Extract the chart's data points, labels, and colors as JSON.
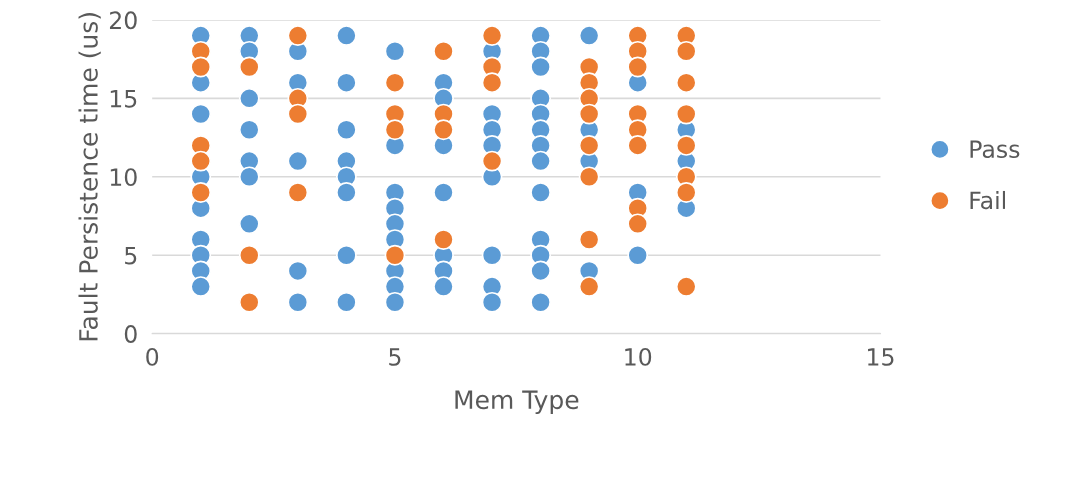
{
  "chart_data": {
    "type": "scatter",
    "xlabel": "Mem Type",
    "ylabel": "Fault Persistence time (us)",
    "xlim": [
      0,
      15
    ],
    "xticks": [
      0,
      5,
      10,
      15
    ],
    "ylim": [
      0,
      20
    ],
    "yticks": [
      0,
      5,
      10,
      15,
      20
    ],
    "grid": "y",
    "legend": "right",
    "marker": "circle",
    "series": [
      {
        "name": "Pass",
        "color": "#5b9bd5",
        "x": [
          1,
          1,
          1,
          1,
          1,
          1,
          1,
          1,
          1,
          2,
          2,
          2,
          2,
          2,
          2,
          2,
          3,
          3,
          3,
          3,
          3,
          4,
          4,
          4,
          4,
          4,
          4,
          4,
          4,
          5,
          5,
          5,
          5,
          5,
          5,
          5,
          5,
          5,
          6,
          6,
          6,
          6,
          6,
          6,
          6,
          7,
          7,
          7,
          7,
          7,
          7,
          7,
          7,
          8,
          8,
          8,
          8,
          8,
          8,
          8,
          8,
          8,
          8,
          8,
          8,
          8,
          9,
          9,
          9,
          9,
          10,
          10,
          10,
          11,
          11,
          11
        ],
        "values": [
          19,
          16,
          14,
          10,
          8,
          6,
          5,
          4,
          3,
          19,
          18,
          15,
          13,
          11,
          10,
          7,
          18,
          16,
          11,
          4,
          2,
          19,
          16,
          13,
          11,
          10,
          9,
          5,
          2,
          18,
          12,
          9,
          8,
          7,
          6,
          4,
          3,
          2,
          16,
          15,
          12,
          9,
          5,
          4,
          3,
          18,
          14,
          13,
          12,
          10,
          5,
          3,
          2,
          19,
          18,
          17,
          15,
          14,
          13,
          12,
          11,
          9,
          6,
          5,
          4,
          2,
          19,
          13,
          11,
          4,
          16,
          9,
          5,
          13,
          11,
          8
        ]
      },
      {
        "name": "Fail",
        "color": "#ed7d31",
        "x": [
          1,
          1,
          1,
          1,
          1,
          2,
          2,
          2,
          3,
          3,
          3,
          3,
          5,
          5,
          5,
          5,
          6,
          6,
          6,
          6,
          7,
          7,
          7,
          7,
          9,
          9,
          9,
          9,
          9,
          9,
          9,
          9,
          10,
          10,
          10,
          10,
          10,
          10,
          10,
          10,
          11,
          11,
          11,
          11,
          11,
          11,
          11,
          11
        ],
        "values": [
          18,
          17,
          12,
          11,
          9,
          17,
          5,
          2,
          19,
          15,
          14,
          9,
          16,
          14,
          13,
          5,
          18,
          14,
          13,
          6,
          19,
          17,
          16,
          11,
          17,
          16,
          15,
          14,
          12,
          10,
          6,
          3,
          19,
          18,
          17,
          14,
          13,
          12,
          8,
          7,
          19,
          18,
          16,
          14,
          12,
          10,
          9,
          3
        ]
      }
    ]
  }
}
